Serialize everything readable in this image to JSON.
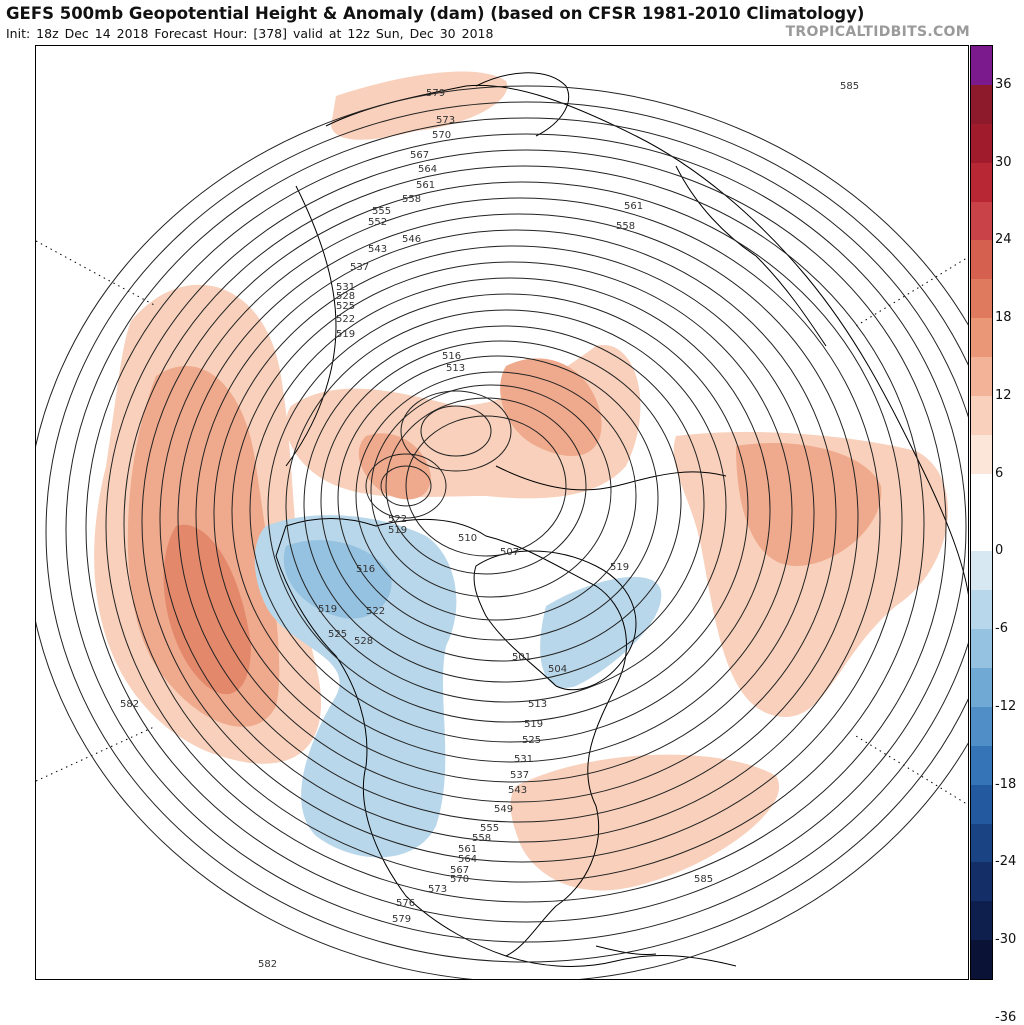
{
  "header": {
    "title": "GEFS 500mb Geopotential Height & Anomaly (dam) (based on CFSR 1981-2010 Climatology)",
    "subtitle": "Init: 18z Dec 14 2018   Forecast Hour: [378]   valid at 12z Sun, Dec 30 2018",
    "brand": "TROPICALTIDBITS.COM"
  },
  "colorbar": {
    "labels": [
      "36",
      "30",
      "24",
      "18",
      "12",
      "6",
      "0",
      "-6",
      "-12",
      "-18",
      "-24",
      "-30",
      "-36"
    ],
    "colors": [
      "#7b1a8c",
      "#8c1a2a",
      "#a01c2c",
      "#b72834",
      "#c94248",
      "#d6604f",
      "#e07a5f",
      "#ea9777",
      "#f2b398",
      "#f8d0bb",
      "#fce6d9",
      "#ffffff",
      "#ffffff",
      "#d7e8f2",
      "#b9d7ea",
      "#95c2e0",
      "#6fa9d4",
      "#4f8ec7",
      "#3575b7",
      "#23599f",
      "#1a4384",
      "#142f68",
      "#0e1f4e",
      "#0a1236"
    ]
  },
  "map": {
    "contour_labels": [
      {
        "text": "579"
      },
      {
        "text": "573"
      },
      {
        "text": "570"
      },
      {
        "text": "567"
      },
      {
        "text": "564"
      },
      {
        "text": "561"
      },
      {
        "text": "558"
      },
      {
        "text": "555"
      },
      {
        "text": "552"
      },
      {
        "text": "546"
      },
      {
        "text": "543"
      },
      {
        "text": "537"
      },
      {
        "text": "531"
      },
      {
        "text": "528"
      },
      {
        "text": "525"
      },
      {
        "text": "522"
      },
      {
        "text": "519"
      },
      {
        "text": "516"
      },
      {
        "text": "513"
      },
      {
        "text": "510"
      },
      {
        "text": "507"
      },
      {
        "text": "519"
      },
      {
        "text": "522"
      },
      {
        "text": "519"
      },
      {
        "text": "516"
      },
      {
        "text": "519"
      },
      {
        "text": "522"
      },
      {
        "text": "525"
      },
      {
        "text": "528"
      },
      {
        "text": "501"
      },
      {
        "text": "504"
      },
      {
        "text": "513"
      },
      {
        "text": "519"
      },
      {
        "text": "525"
      },
      {
        "text": "531"
      },
      {
        "text": "537"
      },
      {
        "text": "543"
      },
      {
        "text": "549"
      },
      {
        "text": "555"
      },
      {
        "text": "558"
      },
      {
        "text": "561"
      },
      {
        "text": "564"
      },
      {
        "text": "567"
      },
      {
        "text": "570"
      },
      {
        "text": "573"
      },
      {
        "text": "576"
      },
      {
        "text": "579"
      },
      {
        "text": "582"
      },
      {
        "text": "582"
      },
      {
        "text": "585"
      },
      {
        "text": "585"
      },
      {
        "text": "561"
      },
      {
        "text": "558"
      }
    ]
  }
}
